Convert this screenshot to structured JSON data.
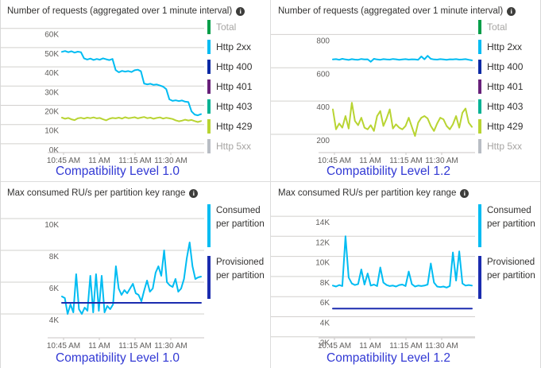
{
  "colors": {
    "caption_blue": "#3239d4",
    "grid_line": "#d2d0ce",
    "axis_line": "#c8c6c4",
    "title_text": "#323130",
    "tick_text": "#605e5c",
    "dimmed_legend_text": "#a6a4a2",
    "http_2xx_cyan": "#00bcf2",
    "http_429_green": "#b8d432",
    "provisioned_navy": "#1b2caf"
  },
  "chart_data": [
    {
      "type": "line",
      "title": "Number of requests (aggregated over 1 minute interval)",
      "info_icon": "info-icon",
      "caption": "Compatibility Level 1.0",
      "grid": "horizontal",
      "legend_position": "right",
      "x_ticks": [
        "10:45 AM",
        "11 AM",
        "11:15 AM",
        "11:30 AM"
      ],
      "y_ticks": [
        {
          "label": "60K",
          "v": 60000
        },
        {
          "label": "50K",
          "v": 50000
        },
        {
          "label": "40K",
          "v": 40000
        },
        {
          "label": "30K",
          "v": 30000
        },
        {
          "label": "20K",
          "v": 20000
        },
        {
          "label": "10K",
          "v": 10000
        },
        {
          "label": "0K",
          "v": 0
        }
      ],
      "ylim": [
        -4600,
        60700
      ],
      "legend": [
        {
          "label": "Total",
          "color": "#009e49",
          "dimmed": true
        },
        {
          "label": "Http 2xx",
          "color": "#00bcf2",
          "dimmed": false
        },
        {
          "label": "Http 400",
          "color": "#0c2aa5",
          "dimmed": false
        },
        {
          "label": "Http 401",
          "color": "#68217a",
          "dimmed": false
        },
        {
          "label": "Http 403",
          "color": "#00b294",
          "dimmed": false
        },
        {
          "label": "Http 429",
          "color": "#b8d432",
          "dimmed": false
        },
        {
          "label": "Http 5xx",
          "color": "#b8bdc4",
          "dimmed": true
        }
      ],
      "series": [
        {
          "name": "Http 2xx",
          "color": "#00bcf2",
          "values": [
            47800,
            48200,
            47600,
            48100,
            47400,
            47900,
            47600,
            44400,
            43800,
            44300,
            43600,
            44100,
            43700,
            44400,
            43900,
            43500,
            44100,
            38300,
            37200,
            37900,
            37500,
            37800,
            37300,
            38200,
            38500,
            37700,
            31300,
            30900,
            31200,
            30600,
            30800,
            30300,
            29700,
            28400,
            23100,
            22300,
            22600,
            22200,
            22500,
            21900,
            21700,
            16800,
            15200,
            14800,
            15400
          ]
        },
        {
          "name": "Http 429",
          "color": "#b8d432",
          "values": [
            13600,
            13000,
            13400,
            12700,
            12300,
            13200,
            13500,
            13100,
            13600,
            13300,
            13700,
            13200,
            13400,
            12700,
            12200,
            13000,
            13400,
            13200,
            13600,
            13100,
            13800,
            13300,
            13500,
            13800,
            13200,
            13600,
            13900,
            13300,
            13600,
            13000,
            13400,
            13700,
            13100,
            13500,
            13200,
            12900,
            12200,
            11700,
            12000,
            12500,
            12100,
            12400,
            11800,
            11300,
            11800
          ]
        }
      ]
    },
    {
      "type": "line",
      "title": "Number of requests (aggregated over 1 minute interval)",
      "info_icon": "info-icon",
      "caption": "Compatibility Level 1.2",
      "grid": "horizontal",
      "legend_position": "right",
      "x_ticks": [
        "10:45 AM",
        "11 AM",
        "11:15 AM",
        "11:30 AM"
      ],
      "y_ticks": [
        {
          "label": "800",
          "v": 800
        },
        {
          "label": "600",
          "v": 600
        },
        {
          "label": "400",
          "v": 400
        },
        {
          "label": "200",
          "v": 200
        }
      ],
      "ylim": [
        90,
        845
      ],
      "legend": [
        {
          "label": "Total",
          "color": "#009e49",
          "dimmed": true
        },
        {
          "label": "Http 2xx",
          "color": "#00bcf2",
          "dimmed": false
        },
        {
          "label": "Http 400",
          "color": "#0c2aa5",
          "dimmed": false
        },
        {
          "label": "Http 401",
          "color": "#68217a",
          "dimmed": false
        },
        {
          "label": "Http 403",
          "color": "#00b294",
          "dimmed": false
        },
        {
          "label": "Http 429",
          "color": "#b8d432",
          "dimmed": false
        },
        {
          "label": "Http 5xx",
          "color": "#b8bdc4",
          "dimmed": true
        }
      ],
      "series": [
        {
          "name": "Http 2xx",
          "color": "#00bcf2",
          "values": [
            650,
            652,
            648,
            654,
            650,
            647,
            652,
            649,
            648,
            653,
            650,
            651,
            636,
            654,
            650,
            648,
            652,
            650,
            649,
            653,
            651,
            648,
            650,
            652,
            649,
            651,
            650,
            648,
            668,
            651,
            672,
            654,
            650,
            649,
            652,
            650,
            648,
            651,
            650,
            652,
            649,
            650,
            652,
            648,
            645
          ]
        },
        {
          "name": "Http 429",
          "color": "#b8d432",
          "values": [
            350,
            230,
            265,
            240,
            310,
            235,
            390,
            280,
            255,
            300,
            240,
            230,
            255,
            220,
            310,
            340,
            250,
            295,
            350,
            235,
            260,
            240,
            230,
            250,
            300,
            245,
            190,
            270,
            300,
            310,
            295,
            250,
            220,
            265,
            300,
            290,
            250,
            230,
            260,
            310,
            240,
            330,
            355,
            270,
            245
          ]
        }
      ]
    },
    {
      "type": "line",
      "title": "Max consumed RU/s per partition key range",
      "info_icon": "info-icon",
      "caption": "Compatibility Level 1.0",
      "grid": "horizontal",
      "legend_position": "right",
      "x_ticks": [
        "10:45 AM",
        "11 AM",
        "11:15 AM",
        "11:30 AM"
      ],
      "y_ticks": [
        {
          "label": "10K",
          "v": 10000
        },
        {
          "label": "8K",
          "v": 8000
        },
        {
          "label": "6K",
          "v": 6000
        },
        {
          "label": "4K",
          "v": 4000
        }
      ],
      "ylim": [
        2500,
        10400
      ],
      "legend": [
        {
          "label": "Consumed per partition",
          "color": "#00bcf2",
          "dimmed": false
        },
        {
          "label": "Provisioned per partition",
          "color": "#1b2caf",
          "dimmed": false
        }
      ],
      "series": [
        {
          "name": "Consumed per partition",
          "color": "#00bcf2",
          "values": [
            5100,
            5000,
            4000,
            4600,
            4100,
            6500,
            4300,
            4000,
            4400,
            4200,
            6400,
            4100,
            6500,
            4200,
            6400,
            4100,
            4500,
            4300,
            4600,
            7000,
            5600,
            5200,
            5500,
            5300,
            5600,
            5900,
            5300,
            5200,
            4800,
            5500,
            6100,
            5400,
            5600,
            6600,
            7000,
            6400,
            8000,
            6000,
            5800,
            5700,
            6200,
            5400,
            5600,
            6200,
            7500,
            8500,
            7000,
            6200,
            6300,
            6350
          ]
        },
        {
          "name": "Provisioned per partition",
          "color": "#1b2caf",
          "values": [
            4700,
            4700,
            4700,
            4700,
            4700
          ]
        }
      ]
    },
    {
      "type": "line",
      "title": "Max consumed RU/s per partition key range",
      "info_icon": "info-icon",
      "caption": "Compatibility Level 1.2",
      "grid": "horizontal",
      "legend_position": "right",
      "x_ticks": [
        "10:45 AM",
        "11 AM",
        "11:15 AM",
        "11:30 AM"
      ],
      "y_ticks": [
        {
          "label": "14K",
          "v": 14000
        },
        {
          "label": "12K",
          "v": 12000
        },
        {
          "label": "10K",
          "v": 10000
        },
        {
          "label": "8K",
          "v": 8000
        },
        {
          "label": "6K",
          "v": 6000
        },
        {
          "label": "4K",
          "v": 4000
        },
        {
          "label": "2K",
          "v": 2000
        }
      ],
      "ylim": [
        1900,
        14400
      ],
      "legend": [
        {
          "label": "Consumed per partition",
          "color": "#00bcf2",
          "dimmed": false
        },
        {
          "label": "Provisioned per partition",
          "color": "#1b2caf",
          "dimmed": false
        }
      ],
      "series": [
        {
          "name": "Consumed per partition",
          "color": "#00bcf2",
          "values": [
            7100,
            7000,
            7150,
            7050,
            12000,
            7900,
            7300,
            7150,
            7250,
            8700,
            7200,
            8300,
            7100,
            7200,
            7050,
            8900,
            7400,
            7150,
            7050,
            7100,
            7000,
            7150,
            7200,
            7050,
            8500,
            7250,
            7000,
            7100,
            7050,
            7100,
            7200,
            9300,
            7400,
            7000,
            6950,
            7000,
            6900,
            7050,
            10400,
            7600,
            10500,
            7300,
            7100,
            7150,
            7100
          ]
        },
        {
          "name": "Provisioned per partition",
          "color": "#1b2caf",
          "values": [
            4800,
            4800,
            4800,
            4800,
            4800
          ]
        }
      ]
    }
  ]
}
